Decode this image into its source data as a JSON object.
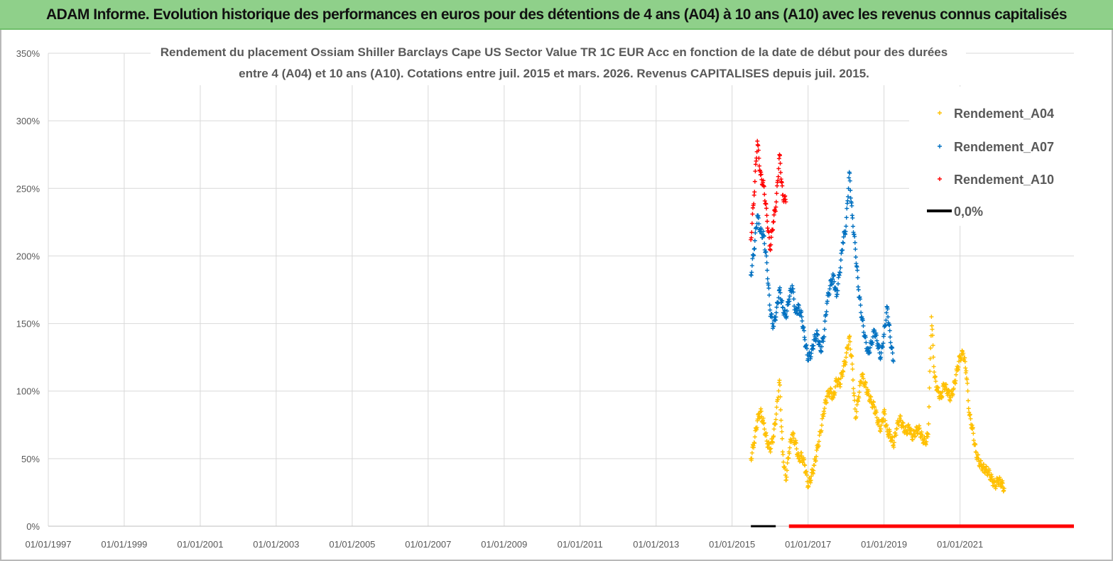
{
  "header": {
    "title": "ADAM Informe. Evolution historique des performances en euros pour des détentions de 4 ans (A04) à 10 ans (A10) avec les revenus connus capitalisés"
  },
  "colors": {
    "header_bg": "#8fd08a",
    "A04": "#ffc000",
    "A07": "#0070c0",
    "A10": "#ff0000",
    "zero": "#000000"
  },
  "chart_data": {
    "type": "scatter",
    "title_lines": [
      "Rendement du placement Ossiam Shiller Barclays Cape US Sector Value TR 1C EUR Acc en fonction de la date de début pour des durées",
      "entre 4 (A04) et 10 ans (A10). Cotations entre juil. 2015 et mars. 2026. Revenus CAPITALISES depuis juil. 2015."
    ],
    "xlabel": "",
    "ylabel": "",
    "x_range": [
      "1997-01-01",
      "2024-01-01"
    ],
    "y_range": [
      0,
      3.5
    ],
    "x_tick_labels": [
      "01/01/1997",
      "01/01/1999",
      "01/01/2001",
      "01/01/2003",
      "01/01/2005",
      "01/01/2007",
      "01/01/2009",
      "01/01/2011",
      "01/01/2013",
      "01/01/2015",
      "01/01/2017",
      "01/01/2019",
      "01/01/2021"
    ],
    "x_ticks": [
      "1997-01-01",
      "1999-01-01",
      "2001-01-01",
      "2003-01-01",
      "2005-01-01",
      "2007-01-01",
      "2009-01-01",
      "2011-01-01",
      "2013-01-01",
      "2015-01-01",
      "2017-01-01",
      "2019-01-01",
      "2021-01-01"
    ],
    "y_tick_labels": [
      "0%",
      "50%",
      "100%",
      "150%",
      "200%",
      "250%",
      "300%",
      "350%"
    ],
    "y_ticks": [
      0,
      0.5,
      1.0,
      1.5,
      2.0,
      2.5,
      3.0,
      3.5
    ],
    "grid": true,
    "legend_position": "top-right",
    "series": [
      {
        "name": "Rendement_A04",
        "marker": "plus",
        "color": "#ffc000",
        "points": [
          [
            "2015-07-01",
            0.5
          ],
          [
            "2015-08-01",
            0.62
          ],
          [
            "2015-09-01",
            0.78
          ],
          [
            "2015-10-01",
            0.85
          ],
          [
            "2015-11-01",
            0.76
          ],
          [
            "2015-12-01",
            0.63
          ],
          [
            "2016-01-01",
            0.57
          ],
          [
            "2016-02-01",
            0.66
          ],
          [
            "2016-03-01",
            0.83
          ],
          [
            "2016-04-01",
            1.08
          ],
          [
            "2016-05-01",
            0.55
          ],
          [
            "2016-06-01",
            0.34
          ],
          [
            "2016-07-01",
            0.55
          ],
          [
            "2016-08-01",
            0.68
          ],
          [
            "2016-09-01",
            0.62
          ],
          [
            "2016-10-01",
            0.5
          ],
          [
            "2016-11-01",
            0.52
          ],
          [
            "2016-12-01",
            0.45
          ],
          [
            "2017-01-01",
            0.3
          ],
          [
            "2017-02-01",
            0.37
          ],
          [
            "2017-03-01",
            0.45
          ],
          [
            "2017-04-01",
            0.58
          ],
          [
            "2017-05-01",
            0.7
          ],
          [
            "2017-06-01",
            0.85
          ],
          [
            "2017-07-01",
            0.96
          ],
          [
            "2017-08-01",
            1.0
          ],
          [
            "2017-09-01",
            0.95
          ],
          [
            "2017-10-01",
            1.08
          ],
          [
            "2017-11-01",
            1.05
          ],
          [
            "2017-12-01",
            1.15
          ],
          [
            "2018-01-01",
            1.25
          ],
          [
            "2018-02-01",
            1.4
          ],
          [
            "2018-03-01",
            1.2
          ],
          [
            "2018-04-01",
            0.8
          ],
          [
            "2018-05-01",
            0.96
          ],
          [
            "2018-06-01",
            1.12
          ],
          [
            "2018-07-01",
            1.05
          ],
          [
            "2018-08-01",
            0.98
          ],
          [
            "2018-09-01",
            0.92
          ],
          [
            "2018-10-01",
            0.88
          ],
          [
            "2018-11-01",
            0.78
          ],
          [
            "2018-12-01",
            0.72
          ],
          [
            "2019-01-01",
            0.85
          ],
          [
            "2019-02-01",
            0.7
          ],
          [
            "2019-03-01",
            0.68
          ],
          [
            "2019-04-01",
            0.6
          ],
          [
            "2019-05-01",
            0.72
          ],
          [
            "2019-06-01",
            0.8
          ],
          [
            "2019-07-01",
            0.74
          ],
          [
            "2019-08-01",
            0.7
          ],
          [
            "2019-09-01",
            0.73
          ],
          [
            "2019-10-01",
            0.66
          ],
          [
            "2019-11-01",
            0.7
          ],
          [
            "2019-12-01",
            0.72
          ],
          [
            "2020-01-01",
            0.66
          ],
          [
            "2020-02-01",
            0.62
          ],
          [
            "2020-03-01",
            0.68
          ],
          [
            "2020-04-01",
            1.55
          ],
          [
            "2020-05-01",
            1.1
          ],
          [
            "2020-06-01",
            1.0
          ],
          [
            "2020-07-01",
            0.95
          ],
          [
            "2020-08-01",
            1.05
          ],
          [
            "2020-09-01",
            1.0
          ],
          [
            "2020-10-01",
            0.95
          ],
          [
            "2020-11-01",
            1.02
          ],
          [
            "2020-12-01",
            1.15
          ],
          [
            "2021-01-01",
            1.25
          ],
          [
            "2021-02-01",
            1.28
          ],
          [
            "2021-03-01",
            1.15
          ],
          [
            "2021-04-01",
            0.82
          ],
          [
            "2021-05-01",
            0.72
          ],
          [
            "2021-06-01",
            0.55
          ],
          [
            "2021-07-01",
            0.48
          ],
          [
            "2021-08-01",
            0.44
          ],
          [
            "2021-09-01",
            0.42
          ],
          [
            "2021-10-01",
            0.4
          ],
          [
            "2021-11-01",
            0.35
          ],
          [
            "2021-12-01",
            0.3
          ],
          [
            "2022-01-01",
            0.34
          ],
          [
            "2022-02-01",
            0.32
          ],
          [
            "2022-03-01",
            0.28
          ]
        ]
      },
      {
        "name": "Rendement_A07",
        "marker": "plus",
        "color": "#0070c0",
        "points": [
          [
            "2015-07-01",
            1.86
          ],
          [
            "2015-08-01",
            2.05
          ],
          [
            "2015-09-01",
            2.3
          ],
          [
            "2015-10-01",
            2.18
          ],
          [
            "2015-11-01",
            2.15
          ],
          [
            "2015-12-01",
            1.95
          ],
          [
            "2016-01-01",
            1.6
          ],
          [
            "2016-02-01",
            1.48
          ],
          [
            "2016-03-01",
            1.58
          ],
          [
            "2016-04-01",
            1.75
          ],
          [
            "2016-05-01",
            1.62
          ],
          [
            "2016-06-01",
            1.55
          ],
          [
            "2016-07-01",
            1.68
          ],
          [
            "2016-08-01",
            1.78
          ],
          [
            "2016-09-01",
            1.58
          ],
          [
            "2016-10-01",
            1.62
          ],
          [
            "2016-11-01",
            1.55
          ],
          [
            "2016-12-01",
            1.38
          ],
          [
            "2017-01-01",
            1.24
          ],
          [
            "2017-02-01",
            1.28
          ],
          [
            "2017-03-01",
            1.38
          ],
          [
            "2017-04-01",
            1.42
          ],
          [
            "2017-05-01",
            1.3
          ],
          [
            "2017-06-01",
            1.4
          ],
          [
            "2017-07-01",
            1.65
          ],
          [
            "2017-08-01",
            1.78
          ],
          [
            "2017-09-01",
            1.85
          ],
          [
            "2017-10-01",
            1.7
          ],
          [
            "2017-11-01",
            1.88
          ],
          [
            "2017-12-01",
            2.1
          ],
          [
            "2018-01-01",
            2.22
          ],
          [
            "2018-02-01",
            2.62
          ],
          [
            "2018-03-01",
            2.3
          ],
          [
            "2018-04-01",
            2.05
          ],
          [
            "2018-05-01",
            1.75
          ],
          [
            "2018-06-01",
            1.55
          ],
          [
            "2018-07-01",
            1.4
          ],
          [
            "2018-08-01",
            1.28
          ],
          [
            "2018-09-01",
            1.35
          ],
          [
            "2018-10-01",
            1.45
          ],
          [
            "2018-11-01",
            1.35
          ],
          [
            "2018-12-01",
            1.25
          ],
          [
            "2019-01-01",
            1.42
          ],
          [
            "2019-02-01",
            1.62
          ],
          [
            "2019-03-01",
            1.4
          ],
          [
            "2019-04-01",
            1.22
          ]
        ]
      },
      {
        "name": "Rendement_A10",
        "marker": "plus",
        "color": "#ff0000",
        "points": [
          [
            "2015-07-01",
            2.12
          ],
          [
            "2015-08-01",
            2.45
          ],
          [
            "2015-09-01",
            2.85
          ],
          [
            "2015-10-01",
            2.6
          ],
          [
            "2015-11-01",
            2.52
          ],
          [
            "2015-12-01",
            2.3
          ],
          [
            "2016-01-01",
            2.05
          ],
          [
            "2016-02-01",
            2.25
          ],
          [
            "2016-03-01",
            2.4
          ],
          [
            "2016-04-01",
            2.75
          ],
          [
            "2016-05-01",
            2.45
          ],
          [
            "2016-06-01",
            2.4
          ]
        ]
      },
      {
        "name": "0,0%",
        "marker": "line",
        "color": "#000000",
        "points": [
          [
            "2015-07-01",
            0
          ],
          [
            "2024-01-01",
            0
          ]
        ]
      }
    ],
    "zero_band": {
      "color": "#ff0000",
      "from": "2016-07-01",
      "to": "2024-01-01",
      "value": 0
    }
  }
}
